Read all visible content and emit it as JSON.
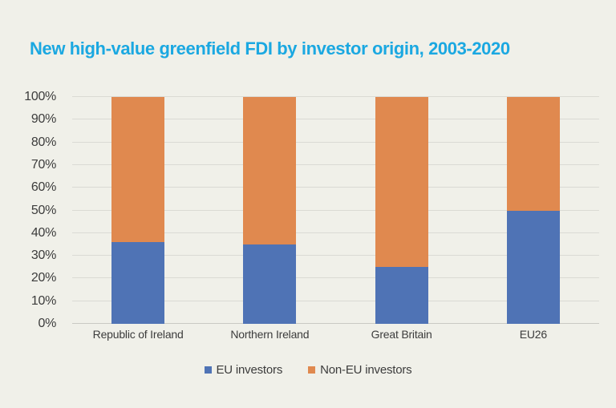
{
  "title": "New high-value greenfield FDI by investor origin, 2003-2020",
  "chart_data": {
    "type": "bar",
    "stacked": true,
    "percent_stacked": true,
    "title": "New high-value greenfield FDI by investor origin, 2003-2020",
    "categories": [
      "Republic of Ireland",
      "Northern Ireland",
      "Great Britain",
      "EU26"
    ],
    "series": [
      {
        "name": "EU investors",
        "color": "#4F73B5",
        "values": [
          36,
          35,
          25,
          50
        ]
      },
      {
        "name": "Non-EU investors",
        "color": "#E0894F",
        "values": [
          64,
          65,
          75,
          50
        ]
      }
    ],
    "xlabel": "",
    "ylabel": "",
    "ylim": [
      0,
      100
    ],
    "ytick_step": 10,
    "ytick_labels": [
      "0%",
      "10%",
      "20%",
      "30%",
      "40%",
      "50%",
      "60%",
      "70%",
      "80%",
      "90%",
      "100%"
    ],
    "grid": true,
    "legend_position": "bottom"
  },
  "colors": {
    "background": "#F0F0E9",
    "title": "#1BA8E1",
    "gridline": "#DADAD4",
    "axis_line": "#C9C9C3",
    "axis_text": "#3C3C3C",
    "series_eu": "#4F73B5",
    "series_non_eu": "#E0894F"
  }
}
